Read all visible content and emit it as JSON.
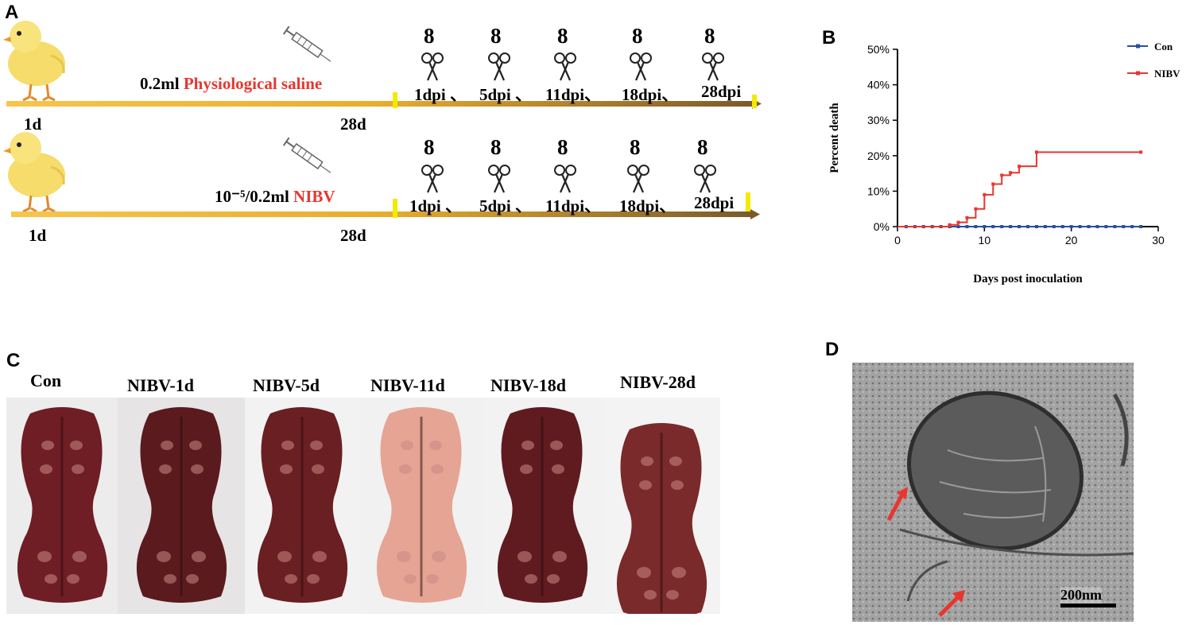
{
  "panels": {
    "a": "A",
    "b": "B",
    "c": "C",
    "d": "D"
  },
  "panel_a": {
    "rows": [
      {
        "start": "1d",
        "end": "28d",
        "dose": "0.2ml",
        "treatment": "Physiological saline"
      },
      {
        "start": "1d",
        "end": "28d",
        "dose": "10⁻⁵/0.2ml",
        "treatment": "NIBV"
      }
    ],
    "sample_count": "8",
    "time_points": [
      "1dpi",
      "5dpi",
      "11dpi",
      "18dpi",
      "28dpi"
    ],
    "separator": "、",
    "colors": {
      "arrow_start": "#f5c14a",
      "arrow_end": "#7a5a2a",
      "marker": "#f5e900",
      "treatment_text": "#e8362f"
    }
  },
  "chart_data": {
    "type": "line",
    "subtype": "step",
    "xlabel": "Days post inoculation",
    "ylabel": "Percent death",
    "xlim": [
      0,
      30
    ],
    "ylim": [
      0,
      50
    ],
    "x_ticks": [
      0,
      10,
      20,
      30
    ],
    "y_ticks": [
      "0%",
      "10%",
      "20%",
      "30%",
      "40%",
      "50%"
    ],
    "legend_position": "top-right",
    "grid": false,
    "series": [
      {
        "name": "Con",
        "color": "#2a4fa0",
        "x": [
          0,
          28
        ],
        "y": [
          0,
          0
        ],
        "censor_x": [
          1,
          2,
          3,
          4,
          5,
          6,
          7,
          8,
          9,
          10,
          11,
          12,
          13,
          14,
          15,
          16,
          17,
          18,
          19,
          20,
          21,
          22,
          23,
          24,
          25,
          26,
          27,
          28
        ]
      },
      {
        "name": "NIBV",
        "color": "#e8362f",
        "x": [
          0,
          6,
          7,
          8,
          9,
          10,
          11,
          12,
          13,
          14,
          16,
          28
        ],
        "y": [
          0,
          0.5,
          1.2,
          2.5,
          5.0,
          9.0,
          12.0,
          14.5,
          15.2,
          17.0,
          21.0,
          21.0
        ]
      }
    ]
  },
  "panel_c": {
    "labels": [
      "Con",
      "NIBV-1d",
      "NIBV-5d",
      "NIBV-11d",
      "NIBV-18d",
      "NIBV-28d"
    ]
  },
  "panel_d": {
    "scale_bar": "200nm"
  }
}
